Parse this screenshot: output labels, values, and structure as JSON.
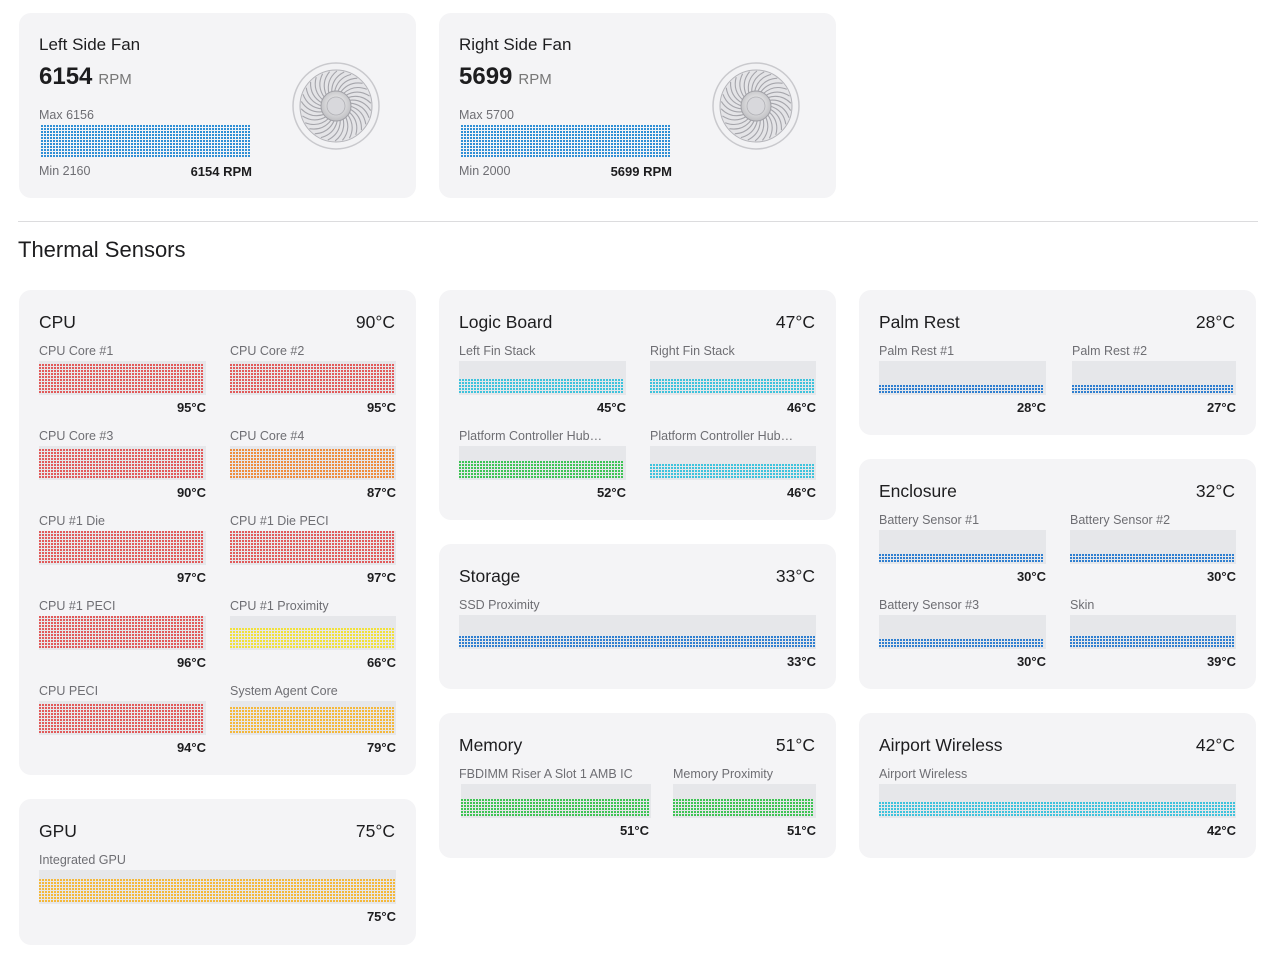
{
  "fans": [
    {
      "title": "Left Side Fan",
      "rpm": "6154",
      "unit": "RPM",
      "max_label": "Max 6156",
      "min_label": "Min 2160",
      "current_label": "6154 RPM",
      "fill": 1.0,
      "color": "#2f8fd5"
    },
    {
      "title": "Right Side Fan",
      "rpm": "5699",
      "unit": "RPM",
      "max_label": "Max 5700",
      "min_label": "Min 2000",
      "current_label": "5699 RPM",
      "fill": 1.0,
      "color": "#2f8fd5"
    }
  ],
  "thermal": {
    "title": "Thermal Sensors",
    "groups": {
      "cpu": {
        "title": "CPU",
        "temp": "90°C",
        "sensors": [
          {
            "label": "CPU Core #1",
            "value": "95°C",
            "level": 0.95,
            "color": "#e25a5a"
          },
          {
            "label": "CPU Core #2",
            "value": "95°C",
            "level": 0.95,
            "color": "#e25a5a"
          },
          {
            "label": "CPU Core #3",
            "value": "90°C",
            "level": 0.9,
            "color": "#e25a5a"
          },
          {
            "label": "CPU Core #4",
            "value": "87°C",
            "level": 0.87,
            "color": "#ef8c3c"
          },
          {
            "label": "CPU #1 Die",
            "value": "97°C",
            "level": 0.97,
            "color": "#e25a5a"
          },
          {
            "label": "CPU #1 Die PECI",
            "value": "97°C",
            "level": 0.97,
            "color": "#e25a5a"
          },
          {
            "label": "CPU #1 PECI",
            "value": "96°C",
            "level": 0.96,
            "color": "#e25a5a"
          },
          {
            "label": "CPU #1 Proximity",
            "value": "66°C",
            "level": 0.66,
            "color": "#f2e13a"
          },
          {
            "label": "CPU PECI",
            "value": "94°C",
            "level": 0.94,
            "color": "#e25a5a"
          },
          {
            "label": "System Agent Core",
            "value": "79°C",
            "level": 0.79,
            "color": "#f5b83a"
          }
        ]
      },
      "gpu": {
        "title": "GPU",
        "temp": "75°C",
        "sensors": [
          {
            "label": "Integrated GPU",
            "value": "75°C",
            "level": 0.75,
            "color": "#f5b83a"
          }
        ]
      },
      "logic": {
        "title": "Logic Board",
        "temp": "47°C",
        "sensors": [
          {
            "label": "Left Fin Stack",
            "value": "45°C",
            "level": 0.45,
            "color": "#3ec3dc"
          },
          {
            "label": "Right Fin Stack",
            "value": "46°C",
            "level": 0.46,
            "color": "#3ec3dc"
          },
          {
            "label": "Platform Controller Hub…",
            "value": "52°C",
            "level": 0.52,
            "color": "#3ec454"
          },
          {
            "label": "Platform Controller Hub…",
            "value": "46°C",
            "level": 0.46,
            "color": "#3ec3dc"
          }
        ]
      },
      "storage": {
        "title": "Storage",
        "temp": "33°C",
        "sensors": [
          {
            "label": "SSD Proximity",
            "value": "33°C",
            "level": 0.33,
            "color": "#2f7fd0"
          }
        ]
      },
      "memory": {
        "title": "Memory",
        "temp": "51°C",
        "sensors": [
          {
            "label": "FBDIMM Riser A Slot 1 AMB IC",
            "value": "51°C",
            "level": 0.51,
            "color": "#3ec454"
          },
          {
            "label": "Memory Proximity",
            "value": "51°C",
            "level": 0.51,
            "color": "#3ec454"
          }
        ]
      },
      "palm": {
        "title": "Palm Rest",
        "temp": "28°C",
        "sensors": [
          {
            "label": "Palm Rest #1",
            "value": "28°C",
            "level": 0.28,
            "color": "#2f7fd0"
          },
          {
            "label": "Palm Rest #2",
            "value": "27°C",
            "level": 0.27,
            "color": "#2f7fd0"
          }
        ]
      },
      "enclosure": {
        "title": "Enclosure",
        "temp": "32°C",
        "sensors": [
          {
            "label": "Battery Sensor #1",
            "value": "30°C",
            "level": 0.3,
            "color": "#2f7fd0"
          },
          {
            "label": "Battery Sensor #2",
            "value": "30°C",
            "level": 0.3,
            "color": "#2f7fd0"
          },
          {
            "label": "Battery Sensor #3",
            "value": "30°C",
            "level": 0.3,
            "color": "#2f7fd0"
          },
          {
            "label": "Skin",
            "value": "39°C",
            "level": 0.39,
            "color": "#2f7fd0"
          }
        ]
      },
      "airport": {
        "title": "Airport Wireless",
        "temp": "42°C",
        "sensors": [
          {
            "label": "Airport Wireless",
            "value": "42°C",
            "level": 0.42,
            "color": "#3ec3dc"
          }
        ]
      }
    }
  }
}
